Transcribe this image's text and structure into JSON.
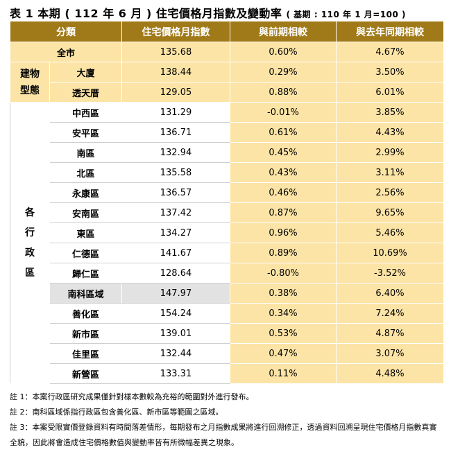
{
  "title": {
    "main": "表 1 本期 ( 112 年 6 月 ) 住宅價格月指數及變動率",
    "base": "( 基期 : 110 年 1 月=100 )"
  },
  "headers": [
    "分類",
    "住宅價格月指數",
    "與前期相較",
    "與去年同期相較"
  ],
  "overall": {
    "label": "全市",
    "index": "135.68",
    "mom": "0.60%",
    "yoy": "4.67%"
  },
  "building_type": {
    "category": "建物\n型態",
    "rows": [
      {
        "name": "大廈",
        "index": "138.44",
        "mom": "0.29%",
        "yoy": "3.50%"
      },
      {
        "name": "透天厝",
        "index": "129.05",
        "mom": "0.88%",
        "yoy": "6.01%"
      }
    ]
  },
  "districts": {
    "category": "各\n行\n政\n區",
    "rows": [
      {
        "name": "中西區",
        "index": "131.29",
        "mom": "-0.01%",
        "yoy": "3.85%"
      },
      {
        "name": "安平區",
        "index": "136.71",
        "mom": "0.61%",
        "yoy": "4.43%"
      },
      {
        "name": "南區",
        "index": "132.94",
        "mom": "0.45%",
        "yoy": "2.99%"
      },
      {
        "name": "北區",
        "index": "135.58",
        "mom": "0.43%",
        "yoy": "3.11%"
      },
      {
        "name": "永康區",
        "index": "136.57",
        "mom": "0.46%",
        "yoy": "2.56%"
      },
      {
        "name": "安南區",
        "index": "137.42",
        "mom": "0.87%",
        "yoy": "9.65%"
      },
      {
        "name": "東區",
        "index": "134.27",
        "mom": "0.96%",
        "yoy": "5.46%"
      },
      {
        "name": "仁德區",
        "index": "141.67",
        "mom": "0.89%",
        "yoy": "10.69%"
      },
      {
        "name": "歸仁區",
        "index": "128.64",
        "mom": "-0.80%",
        "yoy": "-3.52%"
      },
      {
        "name": "南科區域",
        "index": "147.97",
        "mom": "0.38%",
        "yoy": "6.40%",
        "highlight": true
      },
      {
        "name": "善化區",
        "index": "154.24",
        "mom": "0.34%",
        "yoy": "7.24%"
      },
      {
        "name": "新市區",
        "index": "139.01",
        "mom": "0.53%",
        "yoy": "4.87%"
      },
      {
        "name": "佳里區",
        "index": "132.44",
        "mom": "0.47%",
        "yoy": "3.07%"
      },
      {
        "name": "新營區",
        "index": "133.31",
        "mom": "0.11%",
        "yoy": "4.48%"
      }
    ]
  },
  "notes": [
    "註 1：本案行政區研究成果僅針對樣本數較為充裕的範圍對外進行發布。",
    "註 2：南科區域係指行政區包含善化區、新市區等範圍之區域。",
    "註 3：本案受限實價登錄資料有時間落差情形，每期發布之月指數成果將進行回溯修正，透過資料回溯呈現住宅價格月指數真實全貌，因此將會造成住宅價格數值與變動率皆有所微幅差異之現象。"
  ]
}
